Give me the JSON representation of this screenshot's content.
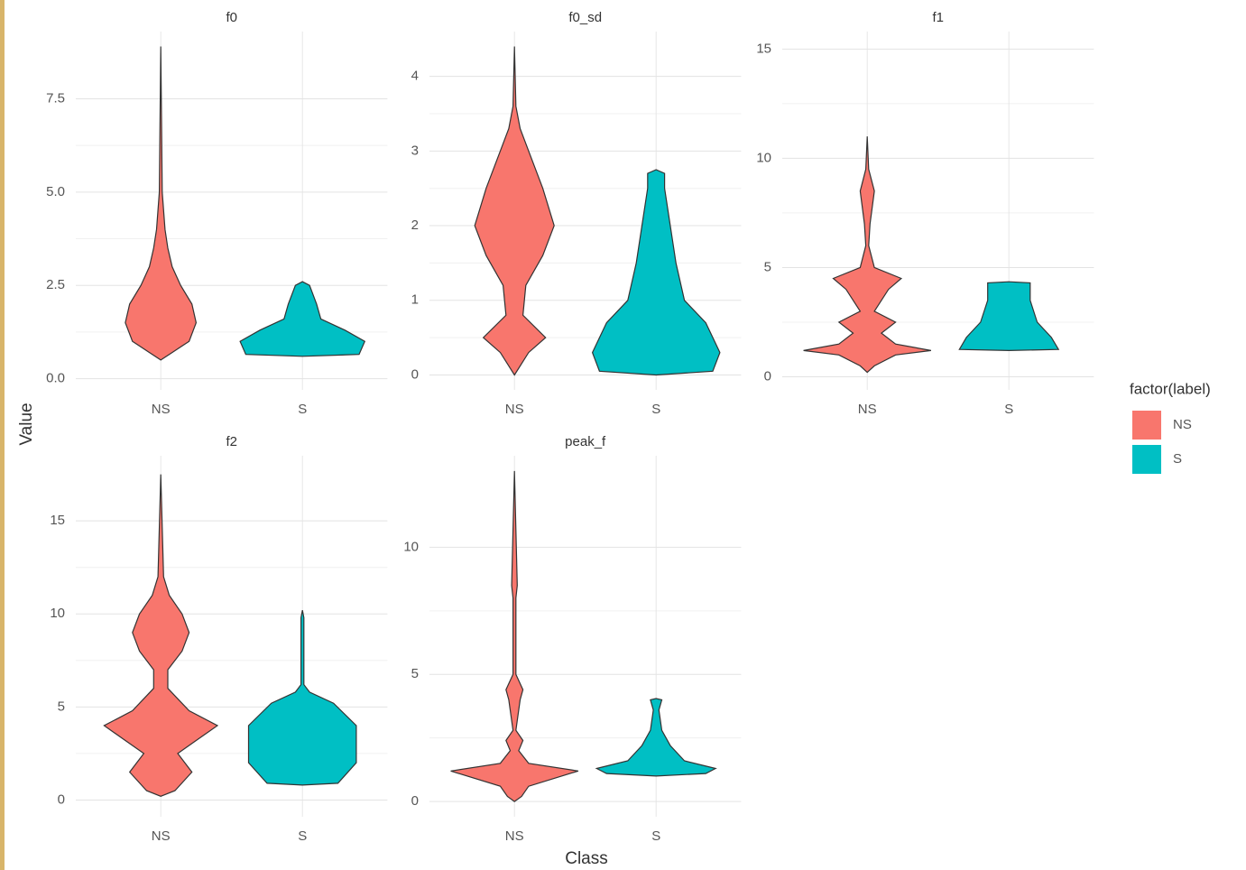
{
  "figure": {
    "xlabel": "Class",
    "ylabel": "Value",
    "legend": {
      "title": "factor(label)",
      "entries": [
        {
          "name": "NS",
          "color": "#F8766D"
        },
        {
          "name": "S",
          "color": "#00BFC4"
        }
      ]
    }
  },
  "chart_data": [
    {
      "type": "violin",
      "title": "f0",
      "categories": [
        "NS",
        "S"
      ],
      "ylim": [
        -0.3,
        9.3
      ],
      "grid": true,
      "yticks": [
        {
          "value": 0,
          "label": "0.0"
        },
        2.5,
        {
          "value": 5,
          "label": "5.0"
        },
        7.5
      ],
      "violins": [
        {
          "y": [
            0.5,
            0.7,
            1.0,
            1.5,
            2.0,
            2.5,
            3.0,
            3.5,
            4.0,
            5,
            7,
            8.9
          ],
          "width": [
            0,
            0.08,
            0.2,
            0.25,
            0.22,
            0.14,
            0.08,
            0.05,
            0.03,
            0.01,
            0.005,
            0
          ]
        },
        {
          "y": [
            0.6,
            0.65,
            1.0,
            1.3,
            1.6,
            2.0,
            2.5,
            2.6
          ],
          "width": [
            0,
            0.4,
            0.44,
            0.3,
            0.13,
            0.1,
            0.05,
            0
          ]
        }
      ]
    },
    {
      "type": "violin",
      "title": "f0_sd",
      "categories": [
        "NS",
        "S"
      ],
      "ylim": [
        -0.2,
        4.6
      ],
      "grid": true,
      "yticks": [
        0,
        1,
        2,
        3,
        4
      ],
      "violins": [
        {
          "y": [
            0,
            0.3,
            0.5,
            0.8,
            1.2,
            1.6,
            2.0,
            2.5,
            3.0,
            3.3,
            3.6,
            4.4
          ],
          "width": [
            0,
            0.1,
            0.22,
            0.06,
            0.08,
            0.2,
            0.28,
            0.2,
            0.1,
            0.04,
            0.01,
            0
          ]
        },
        {
          "y": [
            0,
            0.05,
            0.3,
            0.7,
            1.0,
            1.5,
            2.0,
            2.5,
            2.7,
            2.75
          ],
          "width": [
            0,
            0.4,
            0.45,
            0.35,
            0.2,
            0.14,
            0.1,
            0.06,
            0.06,
            0
          ]
        }
      ]
    },
    {
      "type": "violin",
      "title": "f1",
      "categories": [
        "NS",
        "S"
      ],
      "ylim": [
        -0.6,
        15.8
      ],
      "grid": true,
      "yticks": [
        0,
        5,
        10,
        15
      ],
      "violins": [
        {
          "y": [
            0.2,
            0.5,
            1.0,
            1.2,
            1.5,
            2.0,
            2.5,
            3.0,
            4.0,
            4.5,
            5.0,
            6,
            7,
            8.5,
            9.5,
            11
          ],
          "width": [
            0,
            0.05,
            0.2,
            0.45,
            0.2,
            0.1,
            0.2,
            0.05,
            0.15,
            0.24,
            0.05,
            0.01,
            0.02,
            0.05,
            0.01,
            0
          ]
        },
        {
          "y": [
            1.2,
            1.25,
            1.8,
            2.5,
            3.5,
            4.3,
            4.35
          ],
          "width": [
            0,
            0.35,
            0.3,
            0.2,
            0.15,
            0.15,
            0
          ]
        }
      ]
    },
    {
      "type": "violin",
      "title": "f2",
      "categories": [
        "NS",
        "S"
      ],
      "ylim": [
        -0.9,
        18.5
      ],
      "grid": true,
      "yticks": [
        0,
        5,
        10,
        15
      ],
      "violins": [
        {
          "y": [
            0.2,
            0.5,
            1.5,
            2.5,
            3.2,
            4.0,
            4.8,
            6,
            7,
            8,
            9,
            10,
            11,
            12,
            17.5
          ],
          "width": [
            0,
            0.1,
            0.22,
            0.12,
            0.25,
            0.4,
            0.2,
            0.05,
            0.05,
            0.15,
            0.2,
            0.15,
            0.06,
            0.02,
            0
          ]
        },
        {
          "y": [
            0.8,
            0.9,
            2.0,
            4.0,
            5.2,
            5.8,
            6.2,
            9.8,
            10.2
          ],
          "width": [
            0,
            0.25,
            0.38,
            0.38,
            0.22,
            0.05,
            0.01,
            0.01,
            0
          ]
        }
      ]
    },
    {
      "type": "violin",
      "title": "peak_f",
      "categories": [
        "NS",
        "S"
      ],
      "ylim": [
        -0.6,
        13.6
      ],
      "grid": true,
      "yticks": [
        0,
        5,
        10
      ],
      "violins": [
        {
          "y": [
            0,
            0.2,
            0.6,
            1.2,
            1.5,
            2,
            2.4,
            2.8,
            4,
            4.4,
            5,
            8,
            8.5,
            13
          ],
          "width": [
            0,
            0.05,
            0.1,
            0.45,
            0.1,
            0.03,
            0.06,
            0.01,
            0.04,
            0.06,
            0.01,
            0.01,
            0.02,
            0
          ]
        },
        {
          "y": [
            1.0,
            1.1,
            1.3,
            1.6,
            2.2,
            2.8,
            3.6,
            4.0,
            4.05
          ],
          "width": [
            0,
            0.35,
            0.42,
            0.2,
            0.1,
            0.04,
            0.02,
            0.04,
            0
          ]
        }
      ]
    }
  ]
}
